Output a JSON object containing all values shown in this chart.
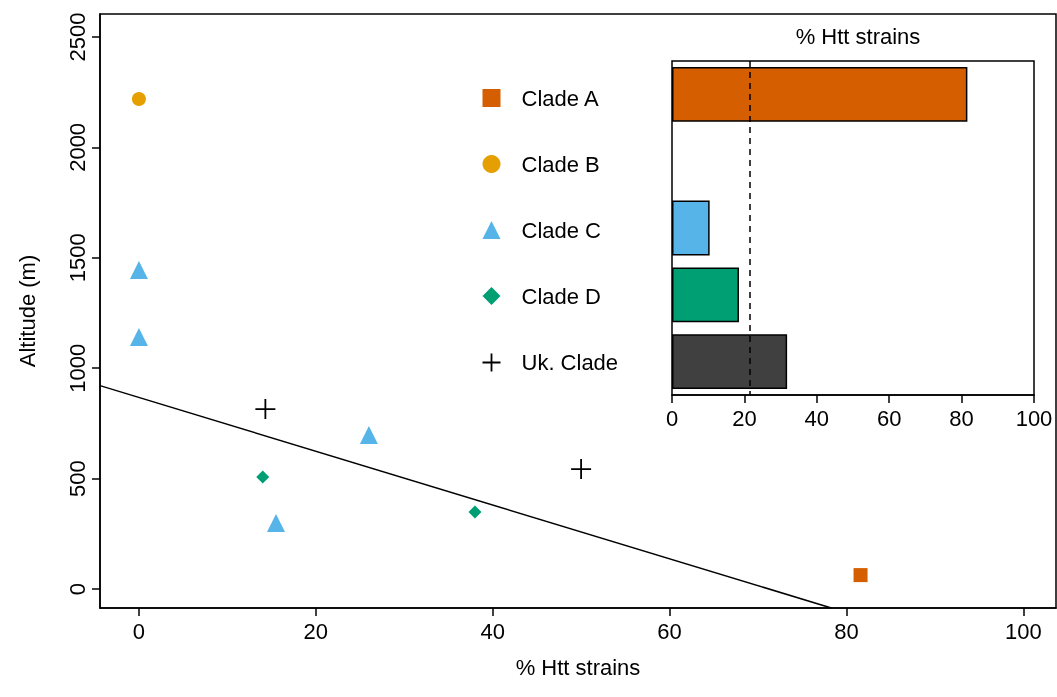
{
  "chart_data": [
    {
      "type": "scatter",
      "xlabel": "% Htt strains",
      "ylabel": "Altitude (m)",
      "xlim": [
        -4.4,
        103.7
      ],
      "xticks": [
        0,
        20,
        40,
        60,
        80,
        100
      ],
      "ylim": [
        -86,
        2604
      ],
      "yticks": [
        0,
        500,
        1000,
        1500,
        2000,
        2500
      ],
      "grid": false,
      "legend": "top right",
      "series": [
        {
          "name": "Clade A",
          "color": "#d55e00",
          "marker": "square",
          "x": [
            81.6
          ],
          "values": [
            63
          ]
        },
        {
          "name": "Clade B",
          "color": "#e69f00",
          "marker": "circle",
          "x": [
            0
          ],
          "values": [
            2219
          ]
        },
        {
          "name": "Clade C",
          "color": "#56b4e9",
          "marker": "triangle",
          "x": [
            0,
            0,
            26,
            15.5
          ],
          "values": [
            1445,
            1141,
            697,
            299
          ]
        },
        {
          "name": "Clade D",
          "color": "#009e73",
          "marker": "diamond",
          "x": [
            14,
            38
          ],
          "values": [
            507,
            349
          ]
        },
        {
          "name": "Uk. Clade",
          "color": "#000000",
          "marker": "cross",
          "x": [
            14.3,
            50
          ],
          "values": [
            815,
            543
          ]
        },
        {
          "type": "line",
          "color": "#000000",
          "marker": "none",
          "x": [
            -4.4,
            78.3
          ],
          "values": [
            921,
            -86
          ]
        }
      ]
    },
    {
      "type": "bar",
      "title": "% Htt strains",
      "orientation": "horizontal",
      "categories": [
        null,
        null,
        null,
        null,
        null
      ],
      "values": [
        81.6,
        0,
        10.4,
        18.5,
        31.8
      ],
      "colors": [
        "#d55e00",
        "#e69f00",
        "#56b4e9",
        "#009e73",
        "#404040"
      ],
      "xlim": [
        0,
        100
      ],
      "xticks": [
        0,
        20,
        40,
        60,
        80,
        100
      ],
      "grid": false,
      "ref_lines": [
        {
          "axis": "x",
          "value": 21.6,
          "line_style": "dashed",
          "color": "#000000"
        }
      ]
    }
  ]
}
